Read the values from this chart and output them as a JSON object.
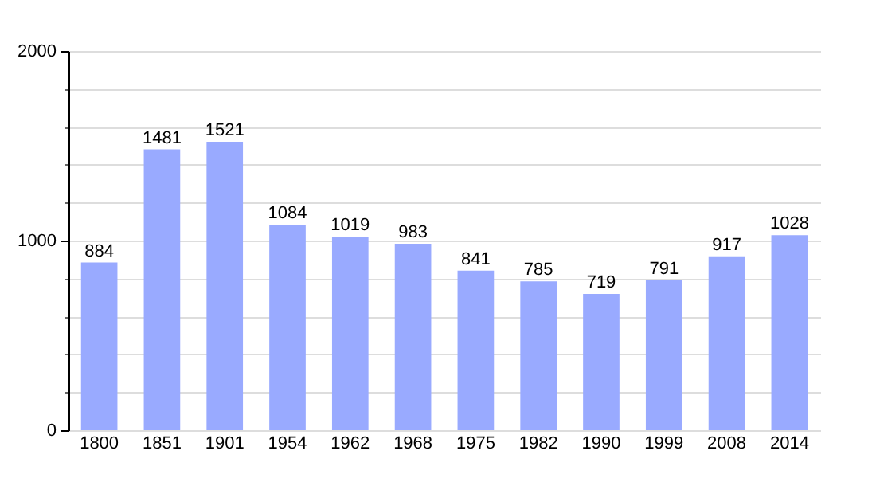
{
  "chart_data": {
    "type": "bar",
    "categories": [
      "1800",
      "1851",
      "1901",
      "1954",
      "1962",
      "1968",
      "1975",
      "1982",
      "1990",
      "1999",
      "2008",
      "2014"
    ],
    "values": [
      884,
      1481,
      1521,
      1084,
      1019,
      983,
      841,
      785,
      719,
      791,
      917,
      1028
    ],
    "color": "#99aaff",
    "ylim": [
      0,
      2000
    ],
    "yticks": [
      0,
      {
        "value": 200,
        "label": null
      },
      {
        "value": 400,
        "label": null
      },
      {
        "value": 600,
        "label": null
      },
      {
        "value": 800,
        "label": null
      },
      1000,
      {
        "value": 1200,
        "label": null
      },
      {
        "value": 1400,
        "label": null
      },
      {
        "value": 1600,
        "label": null
      },
      {
        "value": 1800,
        "label": null
      },
      2000
    ],
    "grid": "y",
    "data_labels": true
  }
}
